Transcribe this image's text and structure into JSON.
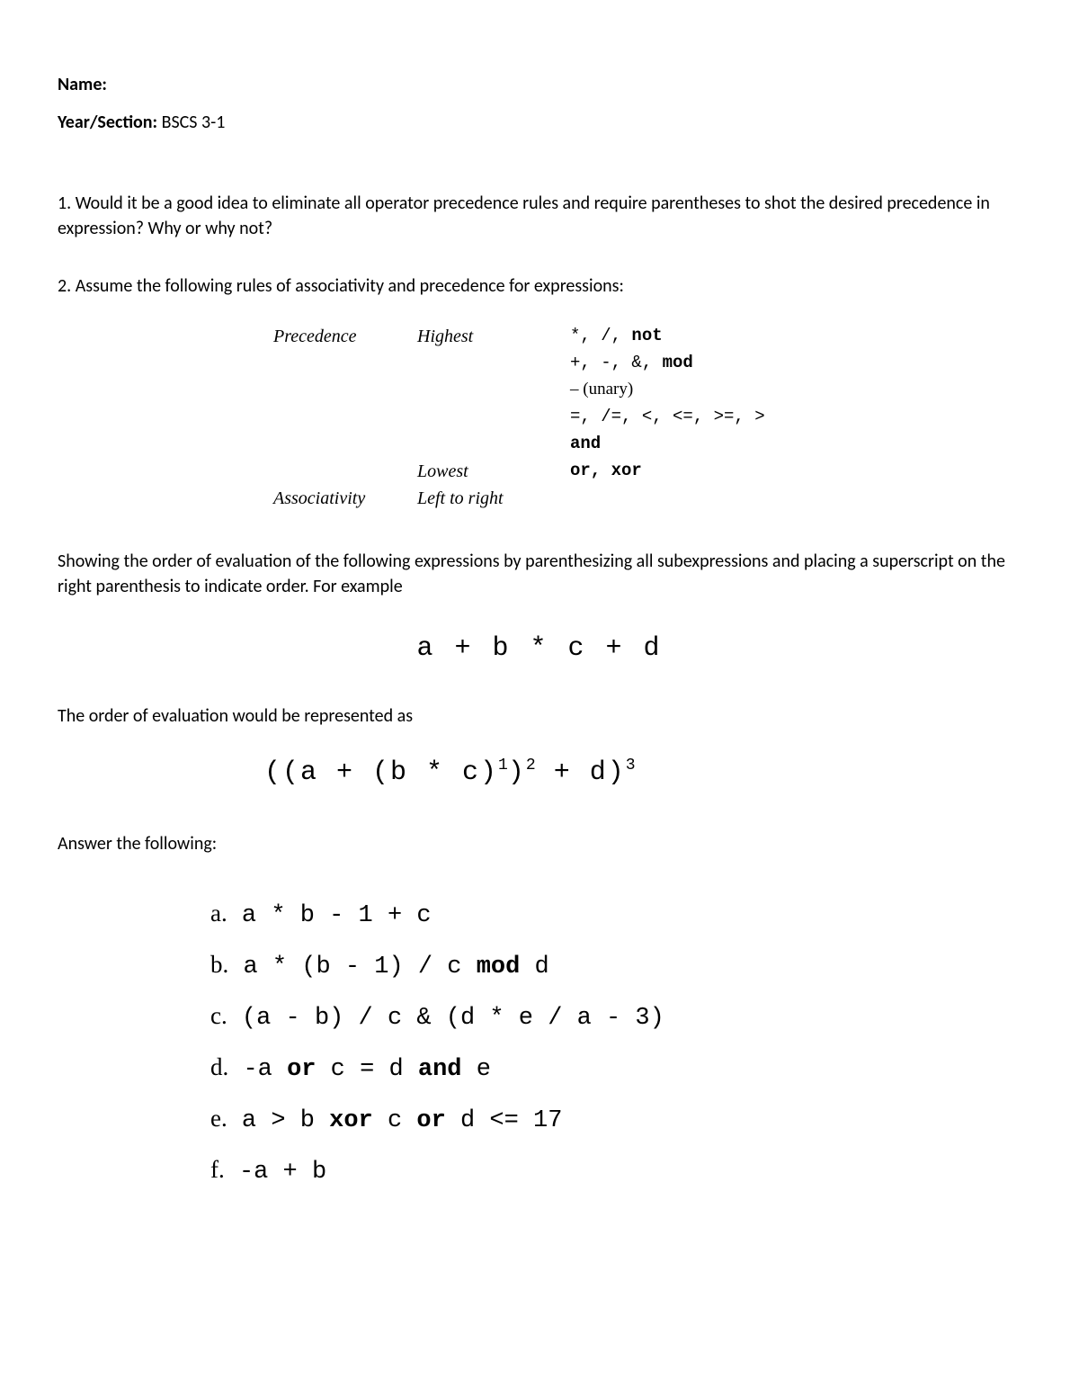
{
  "header": {
    "name_label": "Name:",
    "name_value": "",
    "year_label": "Year/Section:",
    "year_value": " BSCS 3-1"
  },
  "q1": {
    "text": "1. Would it be a good idea to eliminate all operator precedence rules and require parentheses to shot the desired precedence in expression? Why or why not?"
  },
  "q2": {
    "intro": "2. Assume the following rules of associativity and precedence for expressions:",
    "table": {
      "rows": [
        {
          "c1": "Precedence",
          "c2": "Highest",
          "c3_plain": "*, /, ",
          "c3_bold": "not"
        },
        {
          "c1": "",
          "c2": "",
          "c3_plain": "+, -, &, ",
          "c3_bold": "mod"
        },
        {
          "c1": "",
          "c2": "",
          "c3_serif": "– (unary)"
        },
        {
          "c1": "",
          "c2": "",
          "c3_plain": "=, /=, <, <=, >=, >"
        },
        {
          "c1": "",
          "c2": "",
          "c3_bold2": "and"
        },
        {
          "c1": "",
          "c2": "Lowest",
          "c3_bold2": "or, xor"
        },
        {
          "c1": "Associativity",
          "c2": "Left to right",
          "c3_plain": ""
        }
      ]
    },
    "explain1": "Showing the order of evaluation of the following expressions by parenthesizing all subexpressions and placing a superscript on the right parenthesis to indicate order. For example",
    "example_expr": "a + b * c + d",
    "explain2": "The order of evaluation would be represented as",
    "example_eval_prefix": "((a + (b * c)",
    "example_eval_s1": "1",
    "example_eval_mid1": ")",
    "example_eval_s2": "2",
    "example_eval_mid2": " + d)",
    "example_eval_s3": "3",
    "answer_label": "Answer the following:",
    "items": [
      {
        "label": "a.",
        "pre": " a * b - 1 + c"
      },
      {
        "label": "b.",
        "pre": " a * (b - 1) / c ",
        "kw": "mod",
        "post": " d"
      },
      {
        "label": "c.",
        "pre": " (a - b) / c & (d * e / a - 3)"
      },
      {
        "label": "d.",
        "pre": " -a ",
        "kw": "or",
        "mid": " c = d ",
        "kw2": "and",
        "post": " e"
      },
      {
        "label": "e.",
        "pre": " a > b ",
        "kw": "xor",
        "mid": " c ",
        "kw2": "or",
        "post": " d <= 17"
      },
      {
        "label": "f.",
        "pre": "  -a + b"
      }
    ]
  },
  "colors": {
    "text": "#000000",
    "background": "#ffffff"
  },
  "fonts": {
    "body": "Calibri",
    "serif_italic": "Georgia italic",
    "mono": "Courier New"
  }
}
